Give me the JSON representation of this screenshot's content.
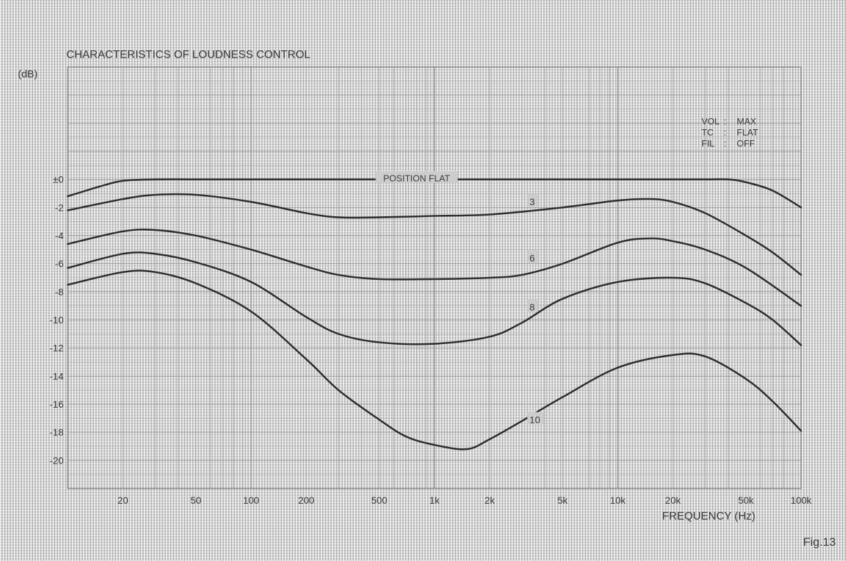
{
  "chart_data": {
    "type": "line",
    "title": "CHARACTERISTICS OF LOUDNESS CONTROL",
    "ylabel": "(dB)",
    "xlabel": "FREQUENCY (Hz)",
    "x_scale": "log",
    "xlim": [
      10,
      100000
    ],
    "ylim": [
      -22,
      8
    ],
    "grid": true,
    "x_ticks": [
      {
        "value": 20,
        "label": "20"
      },
      {
        "value": 50,
        "label": "50"
      },
      {
        "value": 100,
        "label": "100"
      },
      {
        "value": 200,
        "label": "200"
      },
      {
        "value": 500,
        "label": "500"
      },
      {
        "value": 1000,
        "label": "1k"
      },
      {
        "value": 2000,
        "label": "2k"
      },
      {
        "value": 5000,
        "label": "5k"
      },
      {
        "value": 10000,
        "label": "10k"
      },
      {
        "value": 20000,
        "label": "20k"
      },
      {
        "value": 50000,
        "label": "50k"
      },
      {
        "value": 100000,
        "label": "100k"
      }
    ],
    "y_ticks": [
      {
        "value": 0,
        "label": "±0"
      },
      {
        "value": -2,
        "label": "-2"
      },
      {
        "value": -4,
        "label": "-4"
      },
      {
        "value": -6,
        "label": "-6"
      },
      {
        "value": -8,
        "label": "-8"
      },
      {
        "value": -10,
        "label": "-10"
      },
      {
        "value": -12,
        "label": "-12"
      },
      {
        "value": -14,
        "label": "-14"
      },
      {
        "value": -16,
        "label": "-16"
      },
      {
        "value": -18,
        "label": "-18"
      },
      {
        "value": -20,
        "label": "-20"
      }
    ],
    "conditions": [
      {
        "key": "VOL",
        "sep": ":",
        "value": "MAX"
      },
      {
        "key": "TC",
        "sep": ":",
        "value": "FLAT"
      },
      {
        "key": "FIL",
        "sep": ":",
        "value": "OFF"
      }
    ],
    "series": [
      {
        "name": "POSITION  FLAT",
        "label_at": [
          800,
          0
        ],
        "x": [
          10,
          15,
          20,
          30,
          50,
          100,
          200,
          500,
          1000,
          2000,
          5000,
          10000,
          20000,
          30000,
          40000,
          50000,
          70000,
          100000
        ],
        "y": [
          -1.2,
          -0.5,
          -0.1,
          0,
          0,
          0,
          0,
          0,
          0,
          0,
          0,
          0,
          0,
          0,
          0,
          -0.2,
          -0.8,
          -2.0
        ]
      },
      {
        "name": "3",
        "label_at": [
          3300,
          -1.7
        ],
        "x": [
          10,
          20,
          30,
          50,
          100,
          200,
          300,
          500,
          1000,
          2000,
          5000,
          10000,
          15000,
          20000,
          30000,
          50000,
          70000,
          100000
        ],
        "y": [
          -2.2,
          -1.4,
          -1.1,
          -1.1,
          -1.6,
          -2.4,
          -2.7,
          -2.7,
          -2.6,
          -2.5,
          -2.0,
          -1.5,
          -1.4,
          -1.6,
          -2.4,
          -4.0,
          -5.2,
          -6.8
        ]
      },
      {
        "name": "6",
        "label_at": [
          3300,
          -5.7
        ],
        "x": [
          10,
          20,
          30,
          50,
          100,
          200,
          300,
          500,
          1000,
          2000,
          3000,
          5000,
          10000,
          15000,
          20000,
          30000,
          50000,
          100000
        ],
        "y": [
          -4.6,
          -3.7,
          -3.6,
          -4.0,
          -5.0,
          -6.2,
          -6.8,
          -7.1,
          -7.1,
          -7.0,
          -6.8,
          -6.0,
          -4.5,
          -4.2,
          -4.4,
          -5.0,
          -6.3,
          -9.0
        ]
      },
      {
        "name": "8",
        "label_at": [
          3300,
          -9.2
        ],
        "x": [
          10,
          20,
          30,
          50,
          100,
          200,
          300,
          500,
          1000,
          2000,
          3000,
          5000,
          10000,
          20000,
          30000,
          50000,
          70000,
          100000
        ],
        "y": [
          -6.3,
          -5.3,
          -5.3,
          -5.9,
          -7.3,
          -9.8,
          -11.0,
          -11.6,
          -11.7,
          -11.2,
          -10.2,
          -8.5,
          -7.3,
          -7.0,
          -7.4,
          -8.8,
          -10.0,
          -11.8
        ]
      },
      {
        "name": "10",
        "label_at": [
          3300,
          -17.2
        ],
        "x": [
          10,
          20,
          30,
          50,
          100,
          200,
          300,
          500,
          700,
          1000,
          1500,
          2000,
          3000,
          5000,
          10000,
          20000,
          30000,
          50000,
          70000,
          100000
        ],
        "y": [
          -7.5,
          -6.6,
          -6.6,
          -7.4,
          -9.4,
          -12.8,
          -15.0,
          -17.1,
          -18.3,
          -18.9,
          -19.2,
          -18.5,
          -17.2,
          -15.5,
          -13.4,
          -12.5,
          -12.6,
          -14.2,
          -15.8,
          -17.9
        ]
      }
    ]
  },
  "figure_label": "Fig.13"
}
